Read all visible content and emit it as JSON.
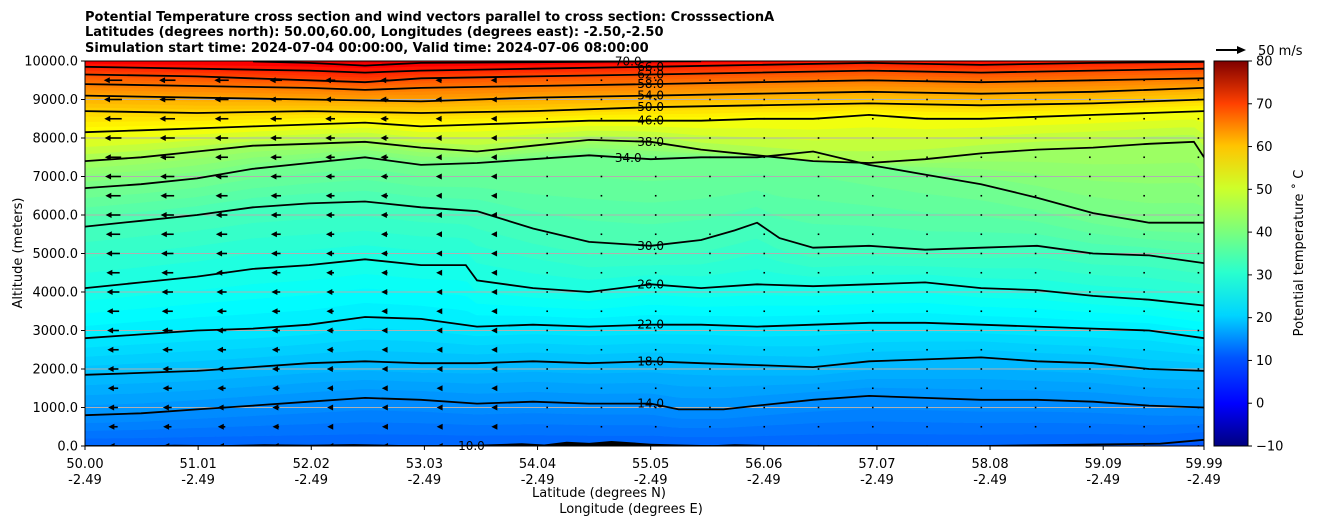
{
  "chart_data": {
    "type": "heatmap",
    "title_lines": [
      "Potential Temperature cross section and wind vectors parallel to cross section: CrosssectionA",
      "Latitudes (degrees north): 50.00,60.00, Longitudes (degrees east): -2.50,-2.50",
      "Simulation start time: 2024-07-04 00:00:00, Valid time: 2024-07-06 08:00:00"
    ],
    "ylabel": "Altitude (meters)",
    "xlabel": "Latitude (degrees N)",
    "xlabel2": "Longitude (degrees E)",
    "ylim": [
      0,
      10000
    ],
    "y_ticks": [
      "0.0",
      "1000.0",
      "2000.0",
      "3000.0",
      "4000.0",
      "5000.0",
      "6000.0",
      "7000.0",
      "8000.0",
      "9000.0",
      "10000.0"
    ],
    "y_tick_values": [
      0,
      1000,
      2000,
      3000,
      4000,
      5000,
      6000,
      7000,
      8000,
      9000,
      10000
    ],
    "xlim": [
      50.0,
      59.99
    ],
    "x_ticks_lat": [
      "50.00",
      "51.01",
      "52.02",
      "53.03",
      "54.04",
      "55.05",
      "56.06",
      "57.07",
      "58.08",
      "59.09",
      "59.99"
    ],
    "x_ticks_lon": [
      "-2.49",
      "-2.49",
      "-2.49",
      "-2.49",
      "-2.49",
      "-2.49",
      "-2.49",
      "-2.49",
      "-2.49",
      "-2.49",
      "-2.49"
    ],
    "x_tick_values": [
      50.0,
      51.01,
      52.02,
      53.03,
      54.04,
      55.05,
      56.06,
      57.07,
      58.08,
      59.09,
      59.99
    ],
    "grid": "horizontal",
    "colorbar": {
      "label": "Potential temperature $^\\circ$C",
      "label_display": "Potential temperature ˚ C",
      "range": [
        -10,
        80
      ],
      "ticks": [
        "−10",
        "0",
        "10",
        "20",
        "30",
        "40",
        "50",
        "60",
        "70",
        "80"
      ],
      "tick_values": [
        -10,
        0,
        10,
        20,
        30,
        40,
        50,
        60,
        70,
        80
      ],
      "colormap": "jet"
    },
    "wind_key": {
      "label": "50 m/s"
    },
    "contour_lines": [
      {
        "level": 10.0,
        "label": "10.0",
        "label_lat": 53.45,
        "points": [
          [
            50.0,
            1
          ],
          [
            52.0,
            1
          ],
          [
            54.0,
            1
          ],
          [
            56.0,
            1
          ],
          [
            58.0,
            1
          ],
          [
            59.6,
            60
          ],
          [
            59.99,
            160
          ]
        ]
      },
      {
        "level": 14.0,
        "label": "14.0",
        "label_lat": 55.05,
        "points": [
          [
            50.0,
            800
          ],
          [
            50.5,
            850
          ],
          [
            51.0,
            950
          ],
          [
            51.5,
            1050
          ],
          [
            52.0,
            1150
          ],
          [
            52.5,
            1250
          ],
          [
            53.0,
            1200
          ],
          [
            53.5,
            1100
          ],
          [
            54.0,
            1150
          ],
          [
            54.5,
            1100
          ],
          [
            55.05,
            1100
          ],
          [
            55.3,
            950
          ],
          [
            55.7,
            950
          ],
          [
            56.0,
            1050
          ],
          [
            56.5,
            1200
          ],
          [
            57.0,
            1300
          ],
          [
            57.5,
            1250
          ],
          [
            58.0,
            1200
          ],
          [
            58.5,
            1200
          ],
          [
            59.0,
            1150
          ],
          [
            59.5,
            1050
          ],
          [
            59.99,
            1000
          ]
        ]
      },
      {
        "level": 18.0,
        "label": "18.0",
        "label_lat": 55.05,
        "points": [
          [
            50.0,
            1850
          ],
          [
            50.5,
            1900
          ],
          [
            51.0,
            1950
          ],
          [
            51.5,
            2050
          ],
          [
            52.0,
            2150
          ],
          [
            52.5,
            2200
          ],
          [
            53.0,
            2150
          ],
          [
            53.5,
            2150
          ],
          [
            54.0,
            2200
          ],
          [
            54.5,
            2150
          ],
          [
            55.05,
            2200
          ],
          [
            55.5,
            2150
          ],
          [
            56.0,
            2100
          ],
          [
            56.5,
            2050
          ],
          [
            57.0,
            2200
          ],
          [
            57.5,
            2250
          ],
          [
            58.0,
            2300
          ],
          [
            58.5,
            2200
          ],
          [
            59.0,
            2150
          ],
          [
            59.5,
            2000
          ],
          [
            59.99,
            1950
          ]
        ]
      },
      {
        "level": 22.0,
        "label": "22.0",
        "label_lat": 55.05,
        "points": [
          [
            50.0,
            2800
          ],
          [
            50.5,
            2900
          ],
          [
            51.0,
            3000
          ],
          [
            51.5,
            3050
          ],
          [
            52.0,
            3150
          ],
          [
            52.5,
            3350
          ],
          [
            53.0,
            3300
          ],
          [
            53.5,
            3100
          ],
          [
            54.0,
            3150
          ],
          [
            54.5,
            3100
          ],
          [
            55.05,
            3150
          ],
          [
            55.5,
            3150
          ],
          [
            56.0,
            3100
          ],
          [
            56.5,
            3150
          ],
          [
            57.0,
            3200
          ],
          [
            57.5,
            3200
          ],
          [
            58.0,
            3150
          ],
          [
            58.5,
            3100
          ],
          [
            59.0,
            3050
          ],
          [
            59.5,
            3000
          ],
          [
            59.99,
            2800
          ]
        ]
      },
      {
        "level": 26.0,
        "label": "26.0",
        "label_lat": 55.05,
        "points": [
          [
            50.0,
            4100
          ],
          [
            50.5,
            4250
          ],
          [
            51.0,
            4400
          ],
          [
            51.5,
            4600
          ],
          [
            52.0,
            4700
          ],
          [
            52.5,
            4850
          ],
          [
            53.0,
            4700
          ],
          [
            53.4,
            4700
          ],
          [
            53.5,
            4300
          ],
          [
            54.0,
            4100
          ],
          [
            54.5,
            4000
          ],
          [
            55.05,
            4200
          ],
          [
            55.5,
            4100
          ],
          [
            56.0,
            4200
          ],
          [
            56.5,
            4150
          ],
          [
            57.0,
            4200
          ],
          [
            57.5,
            4250
          ],
          [
            58.0,
            4100
          ],
          [
            58.5,
            4050
          ],
          [
            59.0,
            3900
          ],
          [
            59.5,
            3800
          ],
          [
            59.99,
            3650
          ]
        ]
      },
      {
        "level": 30.0,
        "label": "30.0",
        "label_lat": 55.05,
        "points": [
          [
            50.0,
            5700
          ],
          [
            50.5,
            5850
          ],
          [
            51.0,
            6000
          ],
          [
            51.5,
            6200
          ],
          [
            52.0,
            6300
          ],
          [
            52.5,
            6350
          ],
          [
            53.0,
            6200
          ],
          [
            53.5,
            6100
          ],
          [
            54.0,
            5650
          ],
          [
            54.5,
            5300
          ],
          [
            55.05,
            5200
          ],
          [
            55.5,
            5350
          ],
          [
            55.8,
            5600
          ],
          [
            56.0,
            5800
          ],
          [
            56.2,
            5400
          ],
          [
            56.5,
            5150
          ],
          [
            57.0,
            5200
          ],
          [
            57.5,
            5100
          ],
          [
            58.0,
            5150
          ],
          [
            58.5,
            5200
          ],
          [
            59.0,
            5000
          ],
          [
            59.5,
            4950
          ],
          [
            59.99,
            4750
          ]
        ]
      },
      {
        "level": 34.0,
        "label": "34.0",
        "label_lat": 54.85,
        "points": [
          [
            50.0,
            6700
          ],
          [
            50.5,
            6800
          ],
          [
            51.0,
            6950
          ],
          [
            51.5,
            7200
          ],
          [
            52.0,
            7350
          ],
          [
            52.5,
            7500
          ],
          [
            53.0,
            7300
          ],
          [
            53.5,
            7350
          ],
          [
            54.0,
            7450
          ],
          [
            54.5,
            7550
          ],
          [
            55.05,
            7450
          ],
          [
            55.5,
            7500
          ],
          [
            56.0,
            7500
          ],
          [
            56.5,
            7650
          ],
          [
            57.0,
            7300
          ],
          [
            57.5,
            7050
          ],
          [
            58.0,
            6800
          ],
          [
            58.5,
            6450
          ],
          [
            59.0,
            6050
          ],
          [
            59.5,
            5800
          ],
          [
            59.99,
            5800
          ]
        ]
      },
      {
        "level": 38.0,
        "label": "38.0",
        "label_lat": 55.05,
        "points": [
          [
            50.0,
            7400
          ],
          [
            50.5,
            7500
          ],
          [
            51.0,
            7650
          ],
          [
            51.5,
            7800
          ],
          [
            52.0,
            7850
          ],
          [
            52.5,
            7900
          ],
          [
            53.0,
            7750
          ],
          [
            53.5,
            7650
          ],
          [
            54.0,
            7800
          ],
          [
            54.5,
            7950
          ],
          [
            55.05,
            7900
          ],
          [
            55.5,
            7700
          ],
          [
            56.0,
            7550
          ],
          [
            56.5,
            7400
          ],
          [
            57.0,
            7350
          ],
          [
            57.5,
            7450
          ],
          [
            58.0,
            7600
          ],
          [
            58.5,
            7700
          ],
          [
            59.0,
            7750
          ],
          [
            59.5,
            7850
          ],
          [
            59.9,
            7900
          ],
          [
            59.99,
            7500
          ]
        ]
      },
      {
        "level": 46.0,
        "label": "46.0",
        "label_lat": 55.05,
        "points": [
          [
            50.0,
            8150
          ],
          [
            50.5,
            8200
          ],
          [
            51.0,
            8250
          ],
          [
            51.5,
            8300
          ],
          [
            52.0,
            8350
          ],
          [
            52.5,
            8400
          ],
          [
            53.0,
            8300
          ],
          [
            53.5,
            8350
          ],
          [
            54.0,
            8400
          ],
          [
            54.5,
            8450
          ],
          [
            55.05,
            8450
          ],
          [
            55.5,
            8450
          ],
          [
            56.0,
            8500
          ],
          [
            56.5,
            8500
          ],
          [
            57.0,
            8600
          ],
          [
            57.5,
            8500
          ],
          [
            58.0,
            8500
          ],
          [
            58.5,
            8550
          ],
          [
            59.0,
            8600
          ],
          [
            59.5,
            8650
          ],
          [
            59.99,
            8700
          ]
        ]
      },
      {
        "level": 50.0,
        "label": "50.0",
        "label_lat": 55.05,
        "points": [
          [
            50.0,
            8700
          ],
          [
            51.0,
            8650
          ],
          [
            52.0,
            8700
          ],
          [
            53.0,
            8650
          ],
          [
            54.0,
            8700
          ],
          [
            55.05,
            8800
          ],
          [
            56.0,
            8850
          ],
          [
            57.0,
            8900
          ],
          [
            58.0,
            8850
          ],
          [
            59.0,
            8900
          ],
          [
            59.99,
            9000
          ]
        ]
      },
      {
        "level": 54.0,
        "label": "54.0",
        "label_lat": 55.05,
        "points": [
          [
            50.0,
            9100
          ],
          [
            51.0,
            9050
          ],
          [
            52.0,
            9000
          ],
          [
            53.0,
            8950
          ],
          [
            54.0,
            9050
          ],
          [
            55.05,
            9100
          ],
          [
            56.0,
            9150
          ],
          [
            57.0,
            9200
          ],
          [
            58.0,
            9150
          ],
          [
            59.0,
            9200
          ],
          [
            59.99,
            9300
          ]
        ]
      },
      {
        "level": 58.0,
        "label": "58.0",
        "label_lat": 55.05,
        "points": [
          [
            50.0,
            9400
          ],
          [
            51.0,
            9350
          ],
          [
            52.0,
            9300
          ],
          [
            52.5,
            9250
          ],
          [
            53.0,
            9300
          ],
          [
            54.0,
            9350
          ],
          [
            55.05,
            9400
          ],
          [
            56.0,
            9450
          ],
          [
            57.0,
            9500
          ],
          [
            58.0,
            9450
          ],
          [
            59.0,
            9500
          ],
          [
            59.99,
            9550
          ]
        ]
      },
      {
        "level": 62.0,
        "label": "62.0",
        "label_lat": 55.05,
        "points": [
          [
            50.0,
            9650
          ],
          [
            51.0,
            9600
          ],
          [
            52.0,
            9500
          ],
          [
            52.5,
            9450
          ],
          [
            53.0,
            9550
          ],
          [
            54.0,
            9600
          ],
          [
            55.05,
            9650
          ],
          [
            56.0,
            9700
          ],
          [
            57.0,
            9750
          ],
          [
            58.0,
            9700
          ],
          [
            59.0,
            9750
          ],
          [
            59.99,
            9800
          ]
        ]
      },
      {
        "level": 66.0,
        "label": "66.0",
        "label_lat": 55.05,
        "points": [
          [
            50.0,
            9850
          ],
          [
            51.0,
            9800
          ],
          [
            52.0,
            9750
          ],
          [
            52.5,
            9700
          ],
          [
            53.0,
            9750
          ],
          [
            54.0,
            9800
          ],
          [
            55.05,
            9850
          ],
          [
            56.0,
            9900
          ],
          [
            57.0,
            9950
          ],
          [
            58.0,
            9900
          ],
          [
            59.0,
            9950
          ],
          [
            59.99,
            9980
          ]
        ]
      },
      {
        "level": 70.0,
        "label": "70.0",
        "label_lat": 54.85,
        "points": [
          [
            51.5,
            9990
          ],
          [
            52.0,
            9950
          ],
          [
            52.5,
            9880
          ],
          [
            53.0,
            9950
          ],
          [
            54.0,
            9970
          ],
          [
            55.05,
            9990
          ],
          [
            55.5,
            9995
          ]
        ]
      }
    ]
  }
}
